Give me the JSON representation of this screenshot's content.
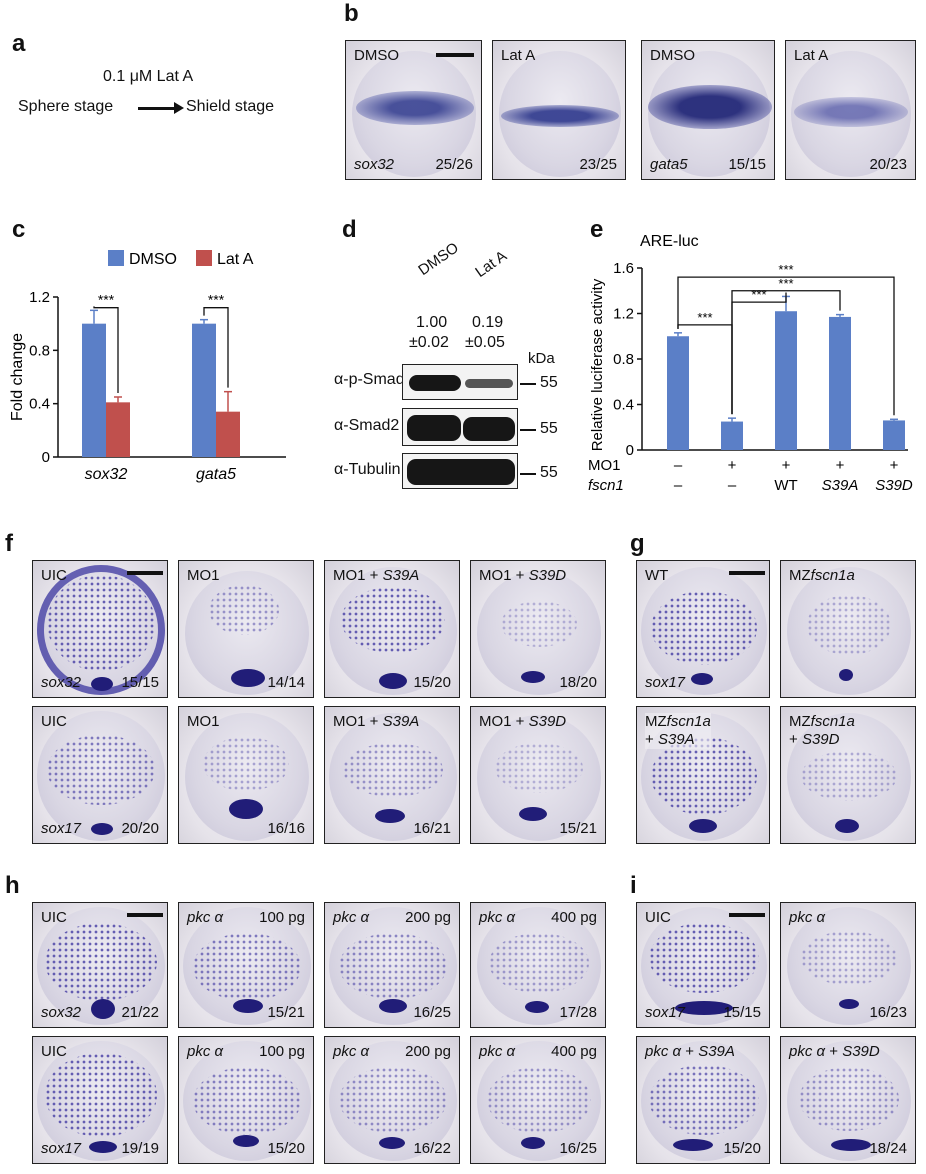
{
  "panels": {
    "a": {
      "label": "a",
      "treatment": "0.1 μM Lat A",
      "from": "Sphere stage",
      "to": "Shield stage"
    },
    "b": {
      "label": "b",
      "tiles": [
        {
          "top": "DMSO",
          "gene": "sox32",
          "count": "25/26"
        },
        {
          "top": "Lat A",
          "gene": "",
          "count": "23/25"
        },
        {
          "top": "DMSO",
          "gene": "gata5",
          "count": "15/15"
        },
        {
          "top": "Lat A",
          "gene": "",
          "count": "20/23"
        }
      ]
    },
    "d": {
      "label": "d",
      "lanes": [
        "DMSO",
        "Lat A"
      ],
      "quant": [
        [
          "1.00",
          "±0.02"
        ],
        [
          "0.19",
          "±0.05"
        ]
      ],
      "kda": "kDa",
      "rows": [
        {
          "name": "α-p-Smad2",
          "marker": "55"
        },
        {
          "name": "α-Smad2",
          "marker": "55"
        },
        {
          "name": "α-Tubulin",
          "marker": "55"
        }
      ]
    },
    "f": {
      "label": "f",
      "tiles": [
        {
          "top": "UIC",
          "gene": "sox32",
          "count": "15/15"
        },
        {
          "top": "MO1",
          "gene": "",
          "count": "14/14"
        },
        {
          "top": "MO1 + ",
          "top_it": "S39A",
          "gene": "",
          "count": "15/20"
        },
        {
          "top": "MO1 + ",
          "top_it": "S39D",
          "gene": "",
          "count": "18/20"
        },
        {
          "top": "UIC",
          "gene": "sox17",
          "count": "20/20"
        },
        {
          "top": "MO1",
          "gene": "",
          "count": "16/16"
        },
        {
          "top": "MO1 + ",
          "top_it": "S39A",
          "gene": "",
          "count": "16/21"
        },
        {
          "top": "MO1 + ",
          "top_it": "S39D",
          "gene": "",
          "count": "15/21"
        }
      ]
    },
    "g": {
      "label": "g",
      "tiles": [
        {
          "line1": "WT",
          "line1_it": "",
          "line2": "",
          "line2_it": "",
          "gene": "sox17"
        },
        {
          "line1": "MZ",
          "line1_it": "fscn1a",
          "line2": "",
          "line2_it": "",
          "gene": ""
        },
        {
          "line1": "MZ",
          "line1_it": "fscn1a",
          "line2": "+ ",
          "line2_it": "S39A",
          "gene": ""
        },
        {
          "line1": "MZ",
          "line1_it": "fscn1a",
          "line2": "+ ",
          "line2_it": "S39D",
          "gene": ""
        }
      ]
    },
    "h": {
      "label": "h",
      "tiles": [
        {
          "top_it": "",
          "top": "UIC",
          "dose": "",
          "gene": "sox32",
          "count": "21/22"
        },
        {
          "top_it": "pkc α",
          "top": "",
          "dose": "100 pg",
          "gene": "",
          "count": "15/21"
        },
        {
          "top_it": "pkc α",
          "top": "",
          "dose": "200 pg",
          "gene": "",
          "count": "16/25"
        },
        {
          "top_it": "pkc α",
          "top": "",
          "dose": "400 pg",
          "gene": "",
          "count": "17/28"
        },
        {
          "top_it": "",
          "top": "UIC",
          "dose": "",
          "gene": "sox17",
          "count": "19/19"
        },
        {
          "top_it": "pkc α",
          "top": "",
          "dose": "100 pg",
          "gene": "",
          "count": "15/20"
        },
        {
          "top_it": "pkc α",
          "top": "",
          "dose": "200 pg",
          "gene": "",
          "count": "16/22"
        },
        {
          "top_it": "pkc α",
          "top": "",
          "dose": "400 pg",
          "gene": "",
          "count": "16/25"
        }
      ]
    },
    "i": {
      "label": "i",
      "tiles": [
        {
          "top_it": "",
          "top": "UIC",
          "top_it2": "",
          "gene": "sox17",
          "count": "15/15"
        },
        {
          "top_it": "pkc α",
          "top": "",
          "top_it2": "",
          "gene": "",
          "count": "16/23"
        },
        {
          "top_it": "pkc α",
          "top": " + ",
          "top_it2": "S39A",
          "gene": "",
          "count": "15/20"
        },
        {
          "top_it": "pkc α",
          "top": " + ",
          "top_it2": "S39D",
          "gene": "",
          "count": "18/24"
        }
      ]
    }
  },
  "chart_data": [
    {
      "panel": "c",
      "type": "bar",
      "ylabel": "Fold change",
      "categories": [
        "sox32",
        "gata5"
      ],
      "series": [
        {
          "name": "DMSO",
          "values": [
            1.0,
            1.0
          ],
          "errors": [
            0.1,
            0.03
          ],
          "color": "#5b7fc7"
        },
        {
          "name": "Lat A",
          "values": [
            0.41,
            0.34
          ],
          "errors": [
            0.04,
            0.15
          ],
          "color": "#c0504d"
        }
      ],
      "ylim": [
        0,
        1.2
      ],
      "yticks": [
        "0",
        "0.4",
        "0.8",
        "1.2"
      ],
      "significance": [
        "***",
        "***"
      ],
      "legend": "top"
    },
    {
      "panel": "e",
      "type": "bar",
      "title": "ARE-luc",
      "ylabel": "Relative luciferase activity",
      "categories": [
        "1",
        "2",
        "3",
        "4",
        "5"
      ],
      "values": [
        1.0,
        0.25,
        1.22,
        1.17,
        0.26
      ],
      "errors": [
        0.03,
        0.03,
        0.13,
        0.02,
        0.01
      ],
      "color": "#5b7fc7",
      "ylim": [
        0,
        1.6
      ],
      "yticks": [
        "0",
        "0.4",
        "0.8",
        "1.2",
        "1.6"
      ],
      "row1_label": "MO1",
      "row1": [
        "–",
        "+",
        "+",
        "+",
        "+"
      ],
      "row2_label": "fscn1",
      "row2": [
        "–",
        "–",
        "WT",
        "S39A",
        "S39D"
      ],
      "significance": [
        "***",
        "***",
        "***",
        "***"
      ]
    }
  ]
}
